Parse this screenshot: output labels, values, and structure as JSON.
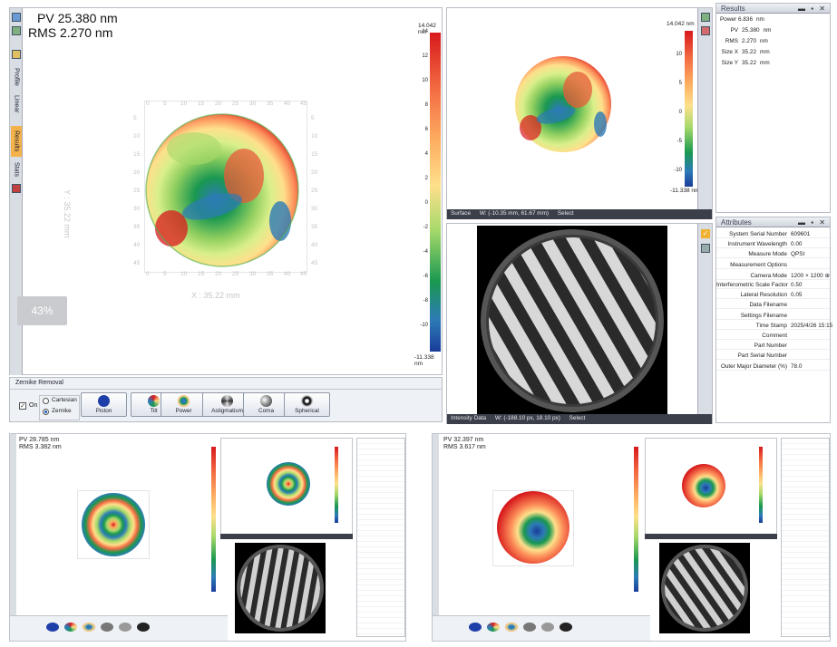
{
  "main": {
    "pv": "PV 25.380 nm",
    "rms": "RMS 2.270 nm",
    "zoom": "43%",
    "x_label": "X : 35.22 mm",
    "y_label": "Y : 35.22 mm",
    "x_ticks": [
      "0",
      "5",
      "10",
      "15",
      "20",
      "25",
      "30",
      "35",
      "40",
      "45"
    ],
    "y_ticks": [
      "5",
      "10",
      "15",
      "20",
      "25",
      "30",
      "35",
      "40",
      "45"
    ],
    "colorbar_max": "14.042 nm",
    "colorbar_ticks": [
      "14",
      "12",
      "10",
      "8",
      "6",
      "4",
      "2",
      "0",
      "-2",
      "-4",
      "-6",
      "-8",
      "-10"
    ],
    "colorbar_min": "-11.338 nm",
    "side_tabs": [
      "Profile",
      "Linear",
      "Results",
      "Stats"
    ]
  },
  "zernike": {
    "title": "Zernike Removal",
    "on_label": "On",
    "cartesian_label": "Cartesian",
    "zernike_label": "Zernike",
    "buttons": [
      "Piston",
      "Tilt",
      "Power",
      "Astigmatism",
      "Coma",
      "Spherical"
    ]
  },
  "surface": {
    "colorbar_max": "14.042 nm",
    "ticks": [
      "10",
      "5",
      "0",
      "-5",
      "-10"
    ],
    "colorbar_min": "-11.338 nm",
    "status_mode": "Surface",
    "status_coords": "W: (-10.35 mm, 61.67 mm)",
    "status_select": "Select"
  },
  "intensity": {
    "status_mode": "Intensity Data",
    "status_coords": "W: (-188.10 px, 18.10 px)",
    "status_select": "Select"
  },
  "results": {
    "title": "Results",
    "rows": [
      {
        "key": "Power",
        "value": "6.836",
        "unit": "nm"
      },
      {
        "key": "PV",
        "value": "25.380",
        "unit": "nm"
      },
      {
        "key": "RMS",
        "value": "2.270",
        "unit": "nm"
      },
      {
        "key": "Size X",
        "value": "35.22",
        "unit": "mm"
      },
      {
        "key": "Size Y",
        "value": "35.22",
        "unit": "mm"
      }
    ]
  },
  "attributes": {
    "title": "Attributes",
    "rows": [
      {
        "key": "System Serial Number",
        "value": "609601"
      },
      {
        "key": "Instrument Wavelength",
        "value": "0.00"
      },
      {
        "key": "Measure Mode",
        "value": "QPSI"
      },
      {
        "key": "Measurement Options",
        "value": ""
      },
      {
        "key": "Camera Mode",
        "value": "1200 × 1200 ⊕"
      },
      {
        "key": "Interferometric Scale Factor",
        "value": "0.50"
      },
      {
        "key": "Lateral Resolution",
        "value": "0.05"
      },
      {
        "key": "Data Filename",
        "value": ""
      },
      {
        "key": "Settings Filename",
        "value": ""
      },
      {
        "key": "Time Stamp",
        "value": "2025/4/26 15:15"
      },
      {
        "key": "Comment",
        "value": ""
      },
      {
        "key": "Part Number",
        "value": ""
      },
      {
        "key": "Part Serial Number",
        "value": ""
      },
      {
        "key": "Outer Major Diameter (%)",
        "value": "78.0"
      }
    ]
  },
  "thumb_left": {
    "pv": "PV 28.785 nm",
    "rms": "RMS 3.382 nm"
  },
  "thumb_right": {
    "pv": "PV 32.397 nm",
    "rms": "RMS 3.617 nm"
  },
  "colors": {
    "red": "#d7191c",
    "green": "#4daf4a",
    "blue": "#2c7bb6",
    "yellow": "#fee08b",
    "status_bg": "#3a3f4a"
  }
}
